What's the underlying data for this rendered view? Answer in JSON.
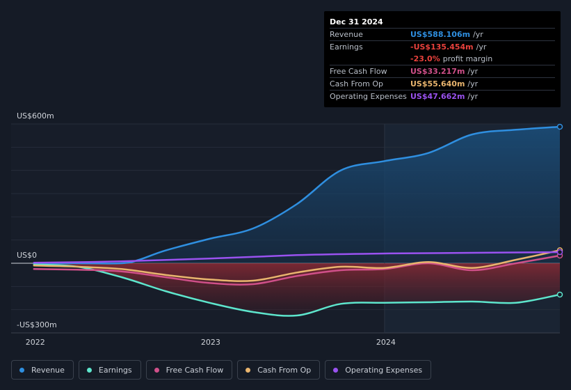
{
  "chart_data": {
    "type": "area",
    "y_labels": {
      "top": "US$600m",
      "zero": "US$0",
      "bottom": "-US$300m"
    },
    "x_ticks": [
      {
        "label": "2022",
        "x": 2022.0
      },
      {
        "label": "2023",
        "x": 2023.0
      },
      {
        "label": "2024",
        "x": 2024.0
      }
    ],
    "ylim": [
      -300,
      600
    ],
    "xlim": [
      2021.87,
      2025.0
    ],
    "forecast_start": 2024.0,
    "series": [
      {
        "key": "revenue",
        "name": "Revenue",
        "color": "#2f8fe0",
        "fill": true,
        "x": [
          2022.0,
          2022.25,
          2022.5,
          2022.6,
          2022.75,
          2023.0,
          2023.25,
          2023.5,
          2023.75,
          2024.0,
          2024.25,
          2024.5,
          2024.75,
          2025.0
        ],
        "y": [
          0,
          0,
          0,
          15,
          55,
          105,
          150,
          255,
          400,
          440,
          475,
          555,
          575,
          588
        ]
      },
      {
        "key": "earnings",
        "name": "Earnings",
        "color": "#5ee6cd",
        "fill": true,
        "x": [
          2022.0,
          2022.25,
          2022.5,
          2022.75,
          2023.0,
          2023.25,
          2023.5,
          2023.75,
          2024.0,
          2024.25,
          2024.5,
          2024.75,
          2025.0
        ],
        "y": [
          -5,
          -15,
          -60,
          -120,
          -170,
          -210,
          -225,
          -175,
          -170,
          -168,
          -165,
          -170,
          -135
        ]
      },
      {
        "key": "fcf",
        "name": "Free Cash Flow",
        "color": "#d0508a",
        "fill": false,
        "x": [
          2022.0,
          2022.25,
          2022.5,
          2022.75,
          2023.0,
          2023.25,
          2023.5,
          2023.75,
          2024.0,
          2024.25,
          2024.5,
          2024.75,
          2025.0
        ],
        "y": [
          -25,
          -28,
          -35,
          -60,
          -85,
          -90,
          -55,
          -30,
          -25,
          0,
          -30,
          0,
          33
        ]
      },
      {
        "key": "cfo",
        "name": "Cash From Op",
        "color": "#e9b56e",
        "fill": false,
        "x": [
          2022.0,
          2022.25,
          2022.5,
          2022.75,
          2023.0,
          2023.25,
          2023.5,
          2023.75,
          2024.0,
          2024.25,
          2024.5,
          2024.75,
          2025.0
        ],
        "y": [
          -10,
          -15,
          -25,
          -50,
          -70,
          -75,
          -40,
          -15,
          -20,
          5,
          -20,
          15,
          56
        ]
      },
      {
        "key": "opex",
        "name": "Operating Expenses",
        "color": "#9a52f0",
        "fill": false,
        "x": [
          2022.0,
          2022.5,
          2023.0,
          2023.5,
          2024.0,
          2024.5,
          2025.0
        ],
        "y": [
          2,
          8,
          20,
          35,
          42,
          45,
          48
        ]
      }
    ]
  },
  "tooltip": {
    "date": "Dec 31 2024",
    "rows": [
      {
        "label": "Revenue",
        "value": "US$588.106m",
        "unit": "/yr",
        "color": "#2f8fe0"
      },
      {
        "label": "Earnings",
        "value": "-US$135.454m",
        "unit": "/yr",
        "color": "#e8413c"
      },
      {
        "label": "",
        "value": "-23.0%",
        "unit": "profit margin",
        "color": "#e8413c"
      },
      {
        "label": "Free Cash Flow",
        "value": "US$33.217m",
        "unit": "/yr",
        "color": "#d0508a"
      },
      {
        "label": "Cash From Op",
        "value": "US$55.640m",
        "unit": "/yr",
        "color": "#e9b56e"
      },
      {
        "label": "Operating Expenses",
        "value": "US$47.662m",
        "unit": "/yr",
        "color": "#9a52f0"
      }
    ]
  },
  "legend": [
    {
      "label": "Revenue",
      "color": "#2f8fe0"
    },
    {
      "label": "Earnings",
      "color": "#5ee6cd"
    },
    {
      "label": "Free Cash Flow",
      "color": "#d0508a"
    },
    {
      "label": "Cash From Op",
      "color": "#e9b56e"
    },
    {
      "label": "Operating Expenses",
      "color": "#9a52f0"
    }
  ]
}
